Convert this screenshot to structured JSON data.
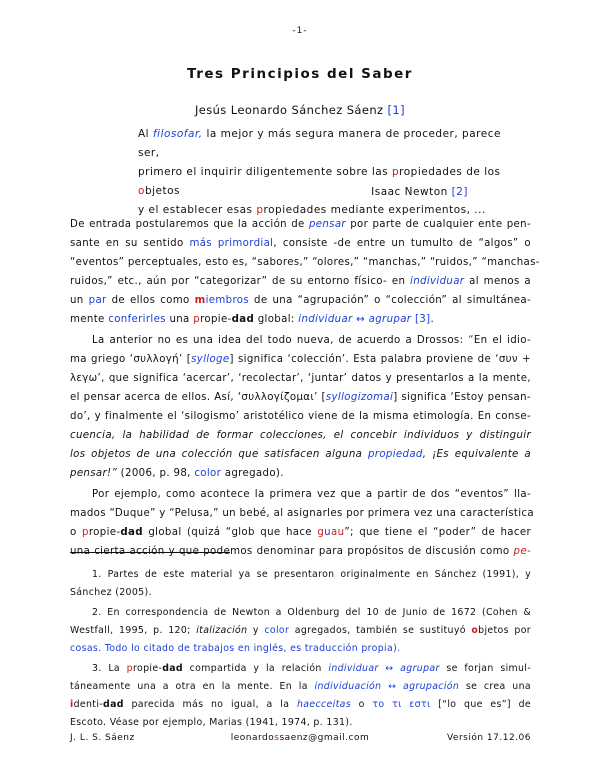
{
  "page_number": "-1-",
  "title": "Tres Principios del Saber",
  "author": "Jesús Leonardo Sánchez Sáenz",
  "author_ref": "[1]",
  "epigraph": {
    "l1_a": "Al ",
    "l1_link": "filosofar,",
    "l1_b": " la mejor y más segura manera de proceder, parece ser,",
    "l2_a": "primero el inquirir diligentemente sobre las ",
    "l2_p": "p",
    "l2_b": "ropiedades de los ",
    "l2_o": "o",
    "l2_c": "bjetos",
    "l3_a": "y el establecer esas ",
    "l3_p": "p",
    "l3_b": "ropiedades mediante experimentos, ...",
    "citation": "Isaac Newton",
    "citation_ref": "[2]"
  },
  "p1": {
    "l1_a": "De entrada postularemos que la acción de ",
    "l1_link": "pensar",
    "l1_b": " por parte de cualquier ente pen-",
    "l2_a": "sante en su sentido ",
    "l2_link": "más primordial",
    "l2_b": ", consiste -de entre un tumulto de “algos” o",
    "l3": "“eventos” perceptuales, esto es, “sabores,” “olores,” “manchas,” “ruidos,” “manchas-",
    "l4_a": "ruidos,” etc., aún por “categorizar” de su entorno físico- en ",
    "l4_link": "individuar",
    "l4_b": " al menos a",
    "l5_a": "un ",
    "l5_link1": "par",
    "l5_b": " de ellos como ",
    "l5_m": "m",
    "l5_link2": "iembros",
    "l5_c": " de una “agrupación” o “colección” al simultánea-",
    "l6_a": "mente ",
    "l6_link1": "conferirles",
    "l6_b": " una ",
    "l6_p": "p",
    "l6_c": "ropie-",
    "l6_dad": "dad",
    "l6_d": " global: ",
    "l6_link2": "individuar ↔ agrupar",
    "l6_e": " ",
    "l6_ref": "[3]",
    "l6_f": "."
  },
  "p2": {
    "l1_a": "La anterior no es una idea del todo nueva, de acuerdo a Drossos: ",
    "l1_q": "“",
    "l1_b": "En el idio-",
    "l2_a": "ma griego ‘συλλογή’ [",
    "l2_link": "sylloge",
    "l2_b": "] significa ‘colección’. Esta palabra proviene de ‘συν +",
    "l3": "λεγω’, que significa ‘acercar’, ‘recolectar’, ‘juntar’ datos y presentarlos a la mente,",
    "l4_a": "el pensar acerca de ellos. Así, ‘συλλογίζομαι’ [",
    "l4_link": "syllogizomai",
    "l4_b": "] significa ‘Estoy pensan-",
    "l5": "do’, y finalmente el ‘silogismo’ aristotélico viene de la misma etimología. En conse-",
    "l6": "cuencia, la habilidad de formar colecciones, el concebir individuos y distinguir",
    "l7_a": "los objetos de una colección que satisfacen alguna ",
    "l7_link": "propiedad",
    "l7_b": ", ¡Es equivalente a",
    "l8_a": "pensar!”",
    "l8_b": " (2006, p. 98, ",
    "l8_link": "color",
    "l8_c": " agregado)."
  },
  "p3": {
    "l1": "Por ejemplo, como acontece la primera vez que a partir de dos “eventos” lla-",
    "l2": "mados “Duque” y “Pelusa,” un bebé, al asignarles por primera vez una característica",
    "l3_a": "o ",
    "l3_p": "p",
    "l3_b": "ropie-",
    "l3_dad": "dad",
    "l3_c": " global (quizá “glob que hace ",
    "l3_g": "g",
    "l3_u": "u",
    "l3_au": "au",
    "l3_d": "”; que tiene el “poder” de hacer",
    "l4_a": "una cierta acción y que podemos denominar para propósitos de discusión como ",
    "l4_link": "pe-"
  },
  "footnotes": {
    "f1_l1": "1. Partes de este material ya se presentaron originalmente en Sánchez (1991), y",
    "f1_l2": "Sánchez (2005).",
    "f2_l1": "2. En correspondencia de Newton a Oldenburg del 10 de Junio de 1672 (Cohen &",
    "f2_l2_a": "Westfall, 1995, p. 120; ",
    "f2_l2_i": "italización",
    "f2_l2_b": " y ",
    "f2_l2_link": "color",
    "f2_l2_c": " agregados, también se sustituyó ",
    "f2_l2_o": "o",
    "f2_l2_d": "bjetos por",
    "f2_l3": "cosas. Todo lo citado de trabajos en inglés, es traducción propia).",
    "f3_l1_a": "3. La ",
    "f3_l1_p": "p",
    "f3_l1_b": "ropie-",
    "f3_l1_dad": "dad",
    "f3_l1_c": " compartida y la relación ",
    "f3_l1_link": "individuar ↔ agrupar",
    "f3_l1_d": " se forjan simul-",
    "f3_l2_a": "táneamente una a otra en la mente. En la ",
    "f3_l2_link": "individuación ↔ agrupación",
    "f3_l2_b": " se crea una",
    "f3_l3_a": "",
    "f3_l3_i": "i",
    "f3_l3_b": "denti-",
    "f3_l3_dad": "dad",
    "f3_l3_c": " parecida más no igual, a la ",
    "f3_l3_link1": "haecceitas",
    "f3_l3_d": " o ",
    "f3_l3_link2": "το τι εστι",
    "f3_l3_e": " [“lo que es”] de",
    "f3_l4": "Escoto. Véase por ejemplo, Marias (1941, 1974, p. 131)."
  },
  "footer": {
    "left": "J. L. S. Sáenz",
    "center_a": "leonardo",
    "center_s": "s",
    "center_b": "saenz@gmail.com",
    "right": "Versión 17.12.06"
  }
}
